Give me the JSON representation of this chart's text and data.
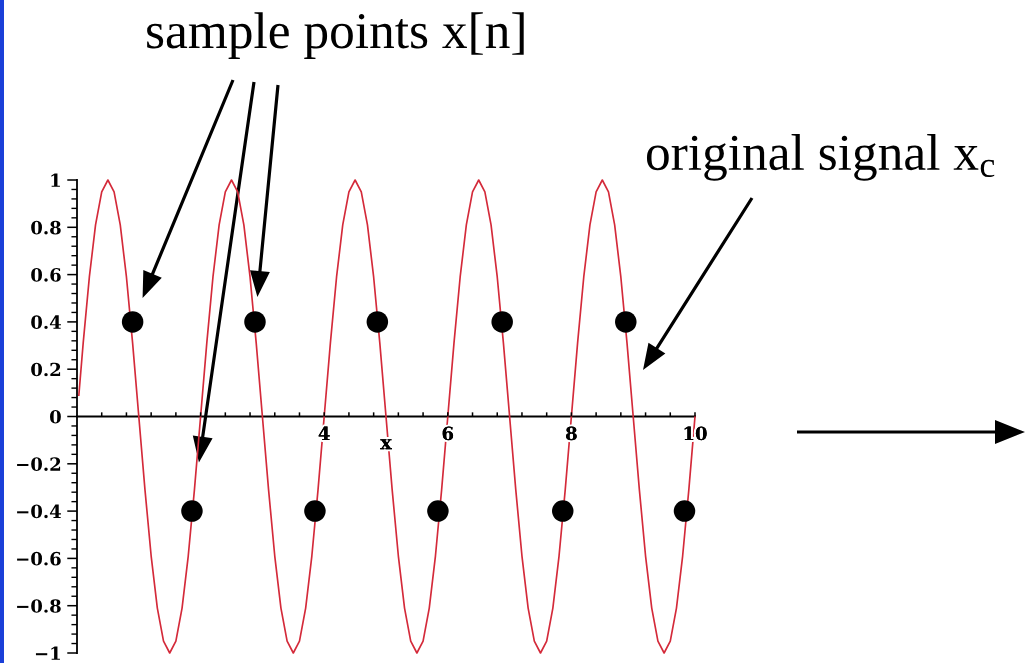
{
  "chart_data": {
    "type": "line",
    "xlabel": "x",
    "xlim": [
      0,
      10
    ],
    "ylim": [
      -1,
      1
    ],
    "xticks": [
      {
        "value": 0.4,
        "label": null
      },
      {
        "value": 0.8,
        "label": null
      },
      {
        "value": 1.2,
        "label": null
      },
      {
        "value": 1.6,
        "label": null
      },
      {
        "value": 2,
        "label": null
      },
      {
        "value": 2.4,
        "label": null
      },
      {
        "value": 2.8,
        "label": null
      },
      {
        "value": 3.2,
        "label": null
      },
      {
        "value": 3.6,
        "label": null
      },
      4,
      {
        "value": 4.4,
        "label": null
      },
      {
        "value": 4.8,
        "label": null
      },
      {
        "value": 5.2,
        "label": null
      },
      {
        "value": 5.6,
        "label": null
      },
      6,
      {
        "value": 6.4,
        "label": null
      },
      {
        "value": 6.8,
        "label": null
      },
      {
        "value": 7.2,
        "label": null
      },
      {
        "value": 7.6,
        "label": null
      },
      8,
      {
        "value": 8.4,
        "label": null
      },
      {
        "value": 8.8,
        "label": null
      },
      {
        "value": 9.2,
        "label": null
      },
      {
        "value": 9.6,
        "label": null
      },
      10
    ],
    "yticks": [
      {
        "value": -1,
        "label": "−1"
      },
      {
        "value": -0.96,
        "label": null
      },
      {
        "value": -0.92,
        "label": null
      },
      {
        "value": -0.88,
        "label": null
      },
      {
        "value": -0.84,
        "label": null
      },
      {
        "value": -0.8,
        "label": "−0.8"
      },
      {
        "value": -0.76,
        "label": null
      },
      {
        "value": -0.72,
        "label": null
      },
      {
        "value": -0.68,
        "label": null
      },
      {
        "value": -0.64,
        "label": null
      },
      {
        "value": -0.6,
        "label": "−0.6"
      },
      {
        "value": -0.56,
        "label": null
      },
      {
        "value": -0.52,
        "label": null
      },
      {
        "value": -0.48,
        "label": null
      },
      {
        "value": -0.44,
        "label": null
      },
      {
        "value": -0.4,
        "label": "−0.4"
      },
      {
        "value": -0.36,
        "label": null
      },
      {
        "value": -0.32,
        "label": null
      },
      {
        "value": -0.28,
        "label": null
      },
      {
        "value": -0.24,
        "label": null
      },
      {
        "value": -0.2,
        "label": "−0.2"
      },
      {
        "value": -0.16,
        "label": null
      },
      {
        "value": -0.12,
        "label": null
      },
      {
        "value": -0.08,
        "label": null
      },
      {
        "value": -0.04,
        "label": null
      },
      0,
      {
        "value": 0.04,
        "label": null
      },
      {
        "value": 0.08,
        "label": null
      },
      {
        "value": 0.12,
        "label": null
      },
      {
        "value": 0.16,
        "label": null
      },
      0.2,
      {
        "value": 0.24,
        "label": null
      },
      {
        "value": 0.28,
        "label": null
      },
      {
        "value": 0.32,
        "label": null
      },
      {
        "value": 0.36,
        "label": null
      },
      0.4,
      {
        "value": 0.44,
        "label": null
      },
      {
        "value": 0.48,
        "label": null
      },
      {
        "value": 0.52,
        "label": null
      },
      {
        "value": 0.56,
        "label": null
      },
      0.6,
      {
        "value": 0.64,
        "label": null
      },
      {
        "value": 0.68,
        "label": null
      },
      {
        "value": 0.72,
        "label": null
      },
      {
        "value": 0.76,
        "label": null
      },
      0.8,
      {
        "value": 0.84,
        "label": null
      },
      {
        "value": 0.88,
        "label": null
      },
      {
        "value": 0.92,
        "label": null
      },
      {
        "value": 0.96,
        "label": null
      },
      1
    ],
    "series": [
      {
        "color": "#d42a3a",
        "marker": "none",
        "line_style": "solid",
        "x": [
          0.03,
          0.1,
          0.2,
          0.3,
          0.4,
          0.5,
          0.6,
          0.7,
          0.8,
          0.9,
          1,
          1.1,
          1.2,
          1.3,
          1.4,
          1.5,
          1.6,
          1.7,
          1.8,
          1.9,
          2,
          2.1,
          2.2,
          2.3,
          2.4,
          2.5,
          2.6,
          2.7,
          2.8,
          2.9,
          3,
          3.1,
          3.2,
          3.3,
          3.4,
          3.5,
          3.6,
          3.7,
          3.8,
          3.9,
          4,
          4.1,
          4.2,
          4.3,
          4.4,
          4.5,
          4.6,
          4.7,
          4.8,
          4.9,
          5,
          5.1,
          5.2,
          5.3,
          5.4,
          5.5,
          5.6,
          5.7,
          5.8,
          5.9,
          6,
          6.1,
          6.2,
          6.3,
          6.4,
          6.5,
          6.6,
          6.7,
          6.8,
          6.9,
          7,
          7.1,
          7.2,
          7.3,
          7.4,
          7.5,
          7.6,
          7.7,
          7.8,
          7.9,
          8,
          8.1,
          8.2,
          8.3,
          8.4,
          8.5,
          8.6,
          8.7,
          8.8,
          8.9,
          9,
          9.1,
          9.2,
          9.3,
          9.4,
          9.5,
          9.6,
          9.7,
          9.8,
          9.9,
          10
        ],
        "values": [
          0.09,
          0.31,
          0.59,
          0.81,
          0.95,
          1,
          0.95,
          0.81,
          0.59,
          0.31,
          0,
          -0.31,
          -0.59,
          -0.81,
          -0.95,
          -1,
          -0.95,
          -0.81,
          -0.59,
          -0.31,
          0,
          0.31,
          0.59,
          0.81,
          0.95,
          1,
          0.95,
          0.81,
          0.59,
          0.31,
          0,
          -0.31,
          -0.59,
          -0.81,
          -0.95,
          -1,
          -0.95,
          -0.81,
          -0.59,
          -0.31,
          0,
          0.31,
          0.59,
          0.81,
          0.95,
          1,
          0.95,
          0.81,
          0.59,
          0.31,
          0,
          -0.31,
          -0.59,
          -0.81,
          -0.95,
          -1,
          -0.95,
          -0.81,
          -0.59,
          -0.31,
          0,
          0.31,
          0.59,
          0.81,
          0.95,
          1,
          0.95,
          0.81,
          0.59,
          0.31,
          0,
          -0.31,
          -0.59,
          -0.81,
          -0.95,
          -1,
          -0.95,
          -0.81,
          -0.59,
          -0.31,
          0,
          0.31,
          0.59,
          0.81,
          0.95,
          1,
          0.95,
          0.81,
          0.59,
          0.31,
          0,
          -0.31,
          -0.59,
          -0.81,
          -0.95,
          -1,
          -0.95,
          -0.81,
          -0.59,
          -0.31,
          0
        ]
      },
      {
        "type": "scatter",
        "color": "#000000",
        "marker": "circle",
        "x": [
          0.9,
          1.86,
          2.88,
          3.85,
          4.86,
          5.84,
          6.88,
          7.86,
          8.88,
          9.83
        ],
        "values": [
          0.4,
          -0.4,
          0.4,
          -0.4,
          0.4,
          -0.4,
          0.4,
          -0.4,
          0.4,
          -0.4
        ]
      }
    ],
    "annotations": [
      "sample points x[n]",
      "original signal x$_{c}$"
    ]
  }
}
